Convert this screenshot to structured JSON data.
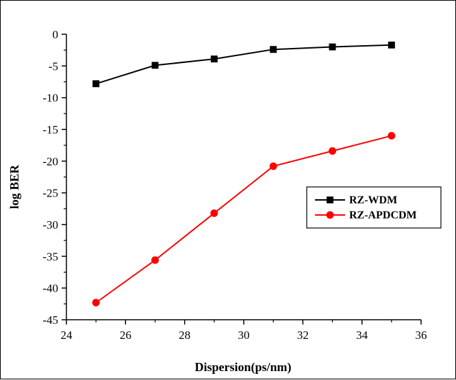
{
  "chart_data": {
    "type": "line",
    "xlabel": "Dispersion(ps/nm)",
    "ylabel": "log BER",
    "xlim": [
      24,
      36
    ],
    "ylim": [
      -45,
      0
    ],
    "xticks": [
      24,
      26,
      28,
      30,
      32,
      34,
      36
    ],
    "yticks": [
      0,
      -5,
      -10,
      -15,
      -20,
      -25,
      -30,
      -35,
      -40,
      -45
    ],
    "x": [
      25,
      27,
      29,
      31,
      33,
      35
    ],
    "series": [
      {
        "name": "RZ-WDM",
        "values": [
          -7.8,
          -4.9,
          -3.9,
          -2.4,
          -2.0,
          -1.7
        ],
        "color": "#000000",
        "marker": "square"
      },
      {
        "name": "RZ-APDCDM",
        "values": [
          -42.3,
          -35.6,
          -28.2,
          -20.8,
          -18.4,
          -16.0
        ],
        "color": "#ff0000",
        "marker": "circle"
      }
    ],
    "legend_position": "right-middle",
    "grid": false
  }
}
